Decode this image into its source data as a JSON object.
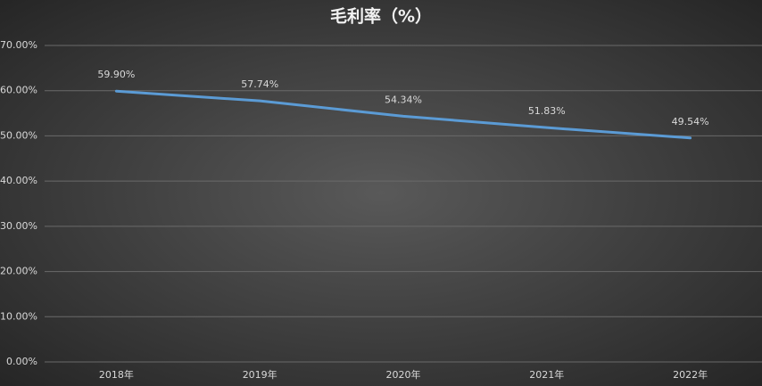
{
  "chart_data": {
    "type": "line",
    "title": "毛利率（%）",
    "categories": [
      "2018年",
      "2019年",
      "2020年",
      "2021年",
      "2022年"
    ],
    "series": [
      {
        "name": "毛利率",
        "color": "#5b9bd5",
        "values": [
          59.9,
          57.74,
          54.34,
          51.83,
          49.54
        ],
        "value_labels": [
          "59.90%",
          "57.74%",
          "54.34%",
          "51.83%",
          "49.54%"
        ]
      }
    ],
    "ylim": [
      0,
      70
    ],
    "yticks": [
      {
        "value": 0,
        "label": "0.00%"
      },
      {
        "value": 10,
        "label": "10.00%"
      },
      {
        "value": 20,
        "label": "20.00%"
      },
      {
        "value": 30,
        "label": "30.00%"
      },
      {
        "value": 40,
        "label": "40.00%"
      },
      {
        "value": 50,
        "label": "50.00%"
      },
      {
        "value": 60,
        "label": "60.00%"
      },
      {
        "value": 70,
        "label": "70.00%"
      }
    ],
    "grid": true,
    "legend": false
  }
}
